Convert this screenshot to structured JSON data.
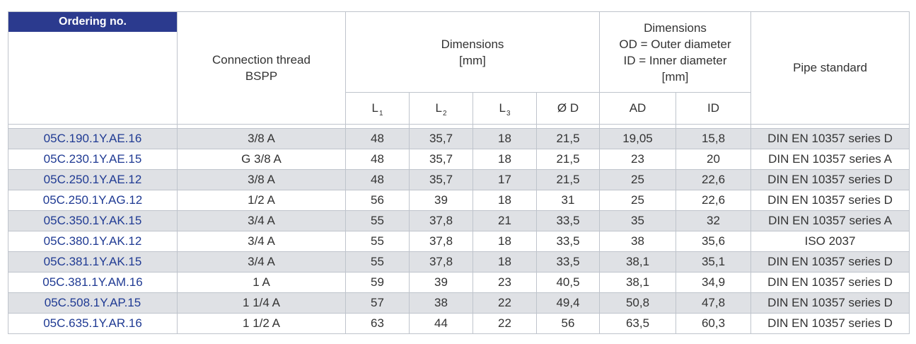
{
  "header": {
    "ordering_no": "Ordering no.",
    "connection_thread_line1": "Connection thread",
    "connection_thread_line2": "BSPP",
    "dimensions_line1": "Dimensions",
    "dimensions_line2": "[mm]",
    "dimensions2_line1": "Dimensions",
    "dimensions2_line2": "OD = Outer diameter",
    "dimensions2_line3": "ID = Inner diameter",
    "dimensions2_line4": "[mm]",
    "pipe_standard": "Pipe standard",
    "l1": "L",
    "l1_sub": "1",
    "l2": "L",
    "l2_sub": "2",
    "l3": "L",
    "l3_sub": "3",
    "od": "Ø D",
    "ad": "AD",
    "id": "ID"
  },
  "rows": [
    {
      "code": "05C.190.1Y.AE.16",
      "thread": "3/8 A",
      "l1": "48",
      "l2": "35,7",
      "l3": "18",
      "d": "21,5",
      "ad": "19,05",
      "id": "15,8",
      "standard": "DIN EN 10357 series D"
    },
    {
      "code": "05C.230.1Y.AE.15",
      "thread": "G 3/8 A",
      "l1": "48",
      "l2": "35,7",
      "l3": "18",
      "d": "21,5",
      "ad": "23",
      "id": "20",
      "standard": "DIN EN 10357 series A"
    },
    {
      "code": "05C.250.1Y.AE.12",
      "thread": "3/8 A",
      "l1": "48",
      "l2": "35,7",
      "l3": "17",
      "d": "21,5",
      "ad": "25",
      "id": "22,6",
      "standard": "DIN EN 10357 series D"
    },
    {
      "code": "05C.250.1Y.AG.12",
      "thread": "1/2 A",
      "l1": "56",
      "l2": "39",
      "l3": "18",
      "d": "31",
      "ad": "25",
      "id": "22,6",
      "standard": "DIN EN 10357 series D"
    },
    {
      "code": "05C.350.1Y.AK.15",
      "thread": "3/4 A",
      "l1": "55",
      "l2": "37,8",
      "l3": "21",
      "d": "33,5",
      "ad": "35",
      "id": "32",
      "standard": "DIN EN 10357 series A"
    },
    {
      "code": "05C.380.1Y.AK.12",
      "thread": "3/4 A",
      "l1": "55",
      "l2": "37,8",
      "l3": "18",
      "d": "33,5",
      "ad": "38",
      "id": "35,6",
      "standard": "ISO 2037"
    },
    {
      "code": "05C.381.1Y.AK.15",
      "thread": "3/4 A",
      "l1": "55",
      "l2": "37,8",
      "l3": "18",
      "d": "33,5",
      "ad": "38,1",
      "id": "35,1",
      "standard": "DIN EN 10357 series D"
    },
    {
      "code": "05C.381.1Y.AM.16",
      "thread": "1 A",
      "l1": "59",
      "l2": "39",
      "l3": "23",
      "d": "40,5",
      "ad": "38,1",
      "id": "34,9",
      "standard": "DIN EN 10357 series D"
    },
    {
      "code": "05C.508.1Y.AP.15",
      "thread": "1 1/4 A",
      "l1": "57",
      "l2": "38",
      "l3": "22",
      "d": "49,4",
      "ad": "50,8",
      "id": "47,8",
      "standard": "DIN EN 10357 series D"
    },
    {
      "code": "05C.635.1Y.AR.16",
      "thread": "1 1/2 A",
      "l1": "63",
      "l2": "44",
      "l3": "22",
      "d": "56",
      "ad": "63,5",
      "id": "60,3",
      "standard": "DIN EN 10357 series D"
    }
  ],
  "colors": {
    "header_badge_bg": "#2b3a8e",
    "code_text": "#1f3a93",
    "row_shade": "#dfe1e5",
    "border": "#bfc4cc"
  }
}
